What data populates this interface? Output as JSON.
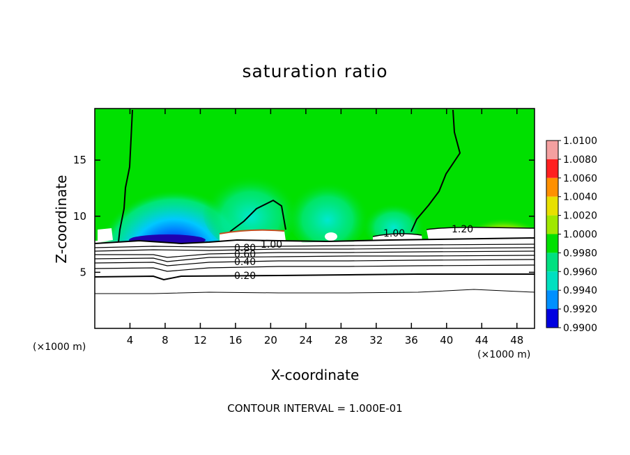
{
  "chart_data": {
    "type": "heatmap",
    "title": "saturation ratio",
    "xlabel": "X-coordinate",
    "ylabel": "Z-coordinate",
    "x_unit": "(×1000 m)",
    "x_ticks": [
      4,
      8,
      12,
      16,
      20,
      24,
      28,
      32,
      36,
      40,
      44,
      48
    ],
    "y_ticks": [
      5,
      10,
      15
    ],
    "xlim": [
      0,
      50
    ],
    "ylim": [
      0,
      19.6
    ],
    "colorbar": {
      "levels": [
        "1.0100",
        "1.0080",
        "1.0060",
        "1.0040",
        "1.0020",
        "1.0000",
        "0.9980",
        "0.9960",
        "0.9940",
        "0.9920",
        "0.9900"
      ],
      "colors": [
        "#f4a0a0",
        "#ff2020",
        "#ff9000",
        "#e8e000",
        "#a0e800",
        "#00e000",
        "#00e080",
        "#00e0c0",
        "#0090ff",
        "#0000e0",
        "#7000c0"
      ]
    },
    "contour_labels": [
      "1.00",
      "1.20",
      "1.00",
      "0.80",
      "0.60",
      "0.40",
      "0.20"
    ],
    "footer": "CONTOUR INTERVAL = 1.000E-01"
  }
}
